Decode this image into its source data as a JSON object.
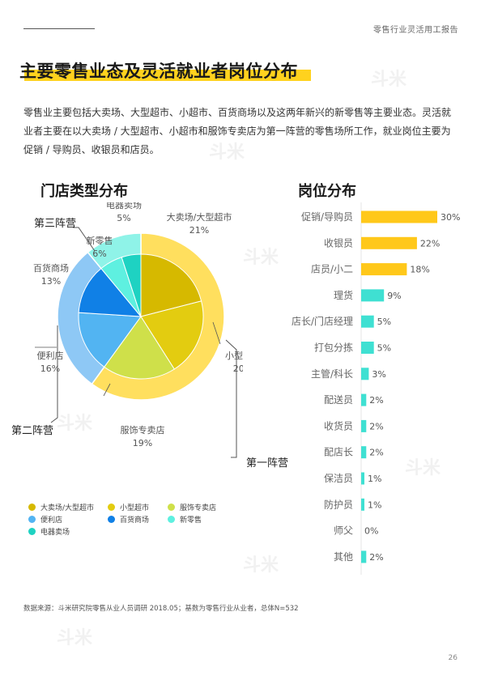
{
  "header": {
    "report_title": "零售行业灵活用工报告"
  },
  "page_title": "主要零售业态及灵活就业者岗位分布",
  "intro": "零售业主要包括大卖场、大型超市、小超市、百货商场以及这两年新兴的新零售等主要业态。灵活就业者主要在以大卖场 / 大型超市、小超市和服饰专卖店为第一阵营的零售场所工作，就业岗位主要为促销 / 导购员、收银员和店员。",
  "watermark": "斗米",
  "camps": {
    "first": "第一阵营",
    "second": "第二阵营",
    "third": "第三阵营"
  },
  "chart_data": [
    {
      "type": "pie",
      "title": "门店类型分布",
      "slices": [
        {
          "label": "大卖场/大型超市",
          "value": 21,
          "display": "21%",
          "color": "#d6b900"
        },
        {
          "label": "小型超市",
          "value": 20,
          "display": "20%",
          "color": "#e3cc10"
        },
        {
          "label": "服饰专卖店",
          "value": 19,
          "display": "19%",
          "color": "#cfe04a"
        },
        {
          "label": "便利店",
          "value": 16,
          "display": "16%",
          "color": "#52b4f2"
        },
        {
          "label": "百货商场",
          "value": 13,
          "display": "13%",
          "color": "#1080e6"
        },
        {
          "label": "新零售",
          "value": 6,
          "display": "6%",
          "color": "#5ef0e0"
        },
        {
          "label": "电器卖场",
          "value": 5,
          "display": "5%",
          "color": "#1ed2c2"
        }
      ],
      "legend": {
        "position": "bottom",
        "entries": [
          "大卖场/大型超市",
          "小型超市",
          "服饰专卖店",
          "便利店",
          "百货商场",
          "新零售",
          "电器卖场"
        ]
      },
      "groups": [
        {
          "label": "第一阵营",
          "members": [
            "大卖场/大型超市",
            "小型超市",
            "服饰专卖店"
          ],
          "value": 60,
          "color": "#ffdf5e"
        },
        {
          "label": "第二阵营",
          "members": [
            "便利店",
            "百货商场"
          ],
          "value": 29,
          "color": "#8ec8f5"
        },
        {
          "label": "第三阵营",
          "members": [
            "新零售",
            "电器卖场"
          ],
          "value": 11,
          "color": "#8ff3e8"
        }
      ]
    },
    {
      "type": "bar",
      "orientation": "horizontal",
      "title": "岗位分布",
      "categories": [
        "促销/导购员",
        "收银员",
        "店员/小二",
        "理货",
        "店长/门店经理",
        "打包分拣",
        "主管/科长",
        "配送员",
        "收货员",
        "配店长",
        "保洁员",
        "防护员",
        "师父",
        "其他"
      ],
      "values": [
        30,
        22,
        18,
        9,
        5,
        5,
        3,
        2,
        2,
        2,
        1,
        1,
        0,
        2
      ],
      "labels": [
        "30%",
        "22%",
        "18%",
        "9%",
        "5%",
        "5%",
        "3%",
        "2%",
        "2%",
        "2%",
        "1%",
        "1%",
        "0%",
        "2%"
      ],
      "colors": {
        "top": "#ffc81a",
        "rest": "#3fe0d2"
      },
      "xlim": [
        0,
        30
      ]
    }
  ],
  "source_note": "数据来源：斗米研究院零售从业人员调研 2018.05；基数为零售行业从业者，总体N=532",
  "page_number": "26"
}
